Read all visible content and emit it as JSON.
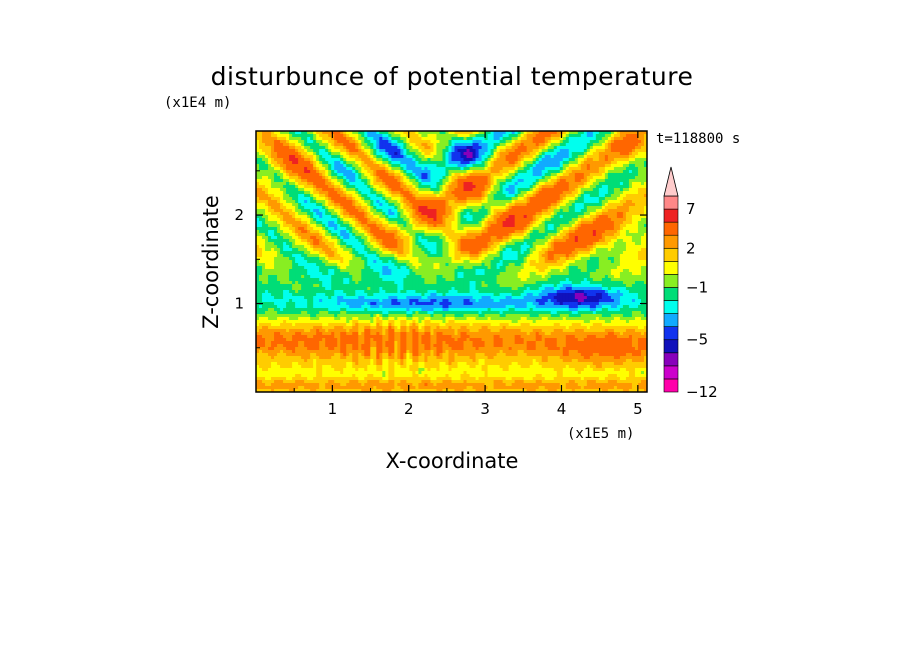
{
  "chart_data": {
    "type": "heatmap",
    "title": "disturbunce of potential temperature",
    "xlabel": "X-coordinate",
    "ylabel": "Z-coordinate",
    "x_unit_label": "(x1E5 m)",
    "y_unit_label": "(x1E4 m)",
    "time_label": "t=118800 s",
    "xlim": [
      0,
      5.12
    ],
    "ylim": [
      0,
      2.95
    ],
    "x_ticks": [
      {
        "value": 1,
        "label": "1"
      },
      {
        "value": 2,
        "label": "2"
      },
      {
        "value": 3,
        "label": "3"
      },
      {
        "value": 4,
        "label": "4"
      },
      {
        "value": 5,
        "label": "5"
      }
    ],
    "y_ticks": [
      {
        "value": 1,
        "label": "1"
      },
      {
        "value": 2,
        "label": "2"
      }
    ],
    "colorbar": {
      "levels": [
        -12,
        -10,
        -8,
        -6,
        -5,
        -4,
        -3,
        -2,
        -1,
        0,
        1,
        2,
        3,
        5,
        7,
        9,
        12
      ],
      "colors": [
        "#ff00aa",
        "#cc00cc",
        "#8800bb",
        "#1111bb",
        "#1133ee",
        "#11aaff",
        "#00ffee",
        "#00dd77",
        "#88ee22",
        "#ffff00",
        "#ffcc00",
        "#ff9900",
        "#ff6600",
        "#ee2222",
        "#ff8888",
        "#ffcccc"
      ],
      "labels": [
        {
          "value": -12,
          "label": "−12"
        },
        {
          "value": -5,
          "label": "−5"
        },
        {
          "value": -1,
          "label": "−1"
        },
        {
          "value": 2,
          "label": "2"
        },
        {
          "value": 7,
          "label": "7"
        }
      ],
      "extend": "max"
    },
    "features": [
      {
        "x": 1.55,
        "z": 0.55,
        "amp": 1.3,
        "sx": 2.4,
        "sz": 0.28
      },
      {
        "x": 4.6,
        "z": 0.45,
        "amp": 1.9,
        "sx": 0.7,
        "sz": 0.18
      },
      {
        "x": 4.25,
        "z": 1.08,
        "amp": -4.2,
        "sx": 0.5,
        "sz": 0.13
      },
      {
        "x": 2.3,
        "z": 1.0,
        "amp": -2.5,
        "sx": 1.6,
        "sz": 0.1
      },
      {
        "x": 1.5,
        "z": 1.35,
        "amp": -1.3,
        "sx": 1.3,
        "sz": 0.15
      },
      {
        "x": 2.6,
        "z": 2.1,
        "amp": 2.2,
        "sx": 1.0,
        "sz": 0.4
      },
      {
        "x": 4.3,
        "z": 1.8,
        "amp": 2.0,
        "sx": 0.9,
        "sz": 0.3
      },
      {
        "x": 0.5,
        "z": 2.6,
        "amp": 2.5,
        "sx": 0.4,
        "sz": 0.3
      },
      {
        "x": 2.4,
        "z": 2.65,
        "amp": -3.0,
        "sx": 0.8,
        "sz": 0.22
      },
      {
        "x": 4.9,
        "z": 2.8,
        "amp": 2.5,
        "sx": 0.25,
        "sz": 0.2
      }
    ]
  }
}
